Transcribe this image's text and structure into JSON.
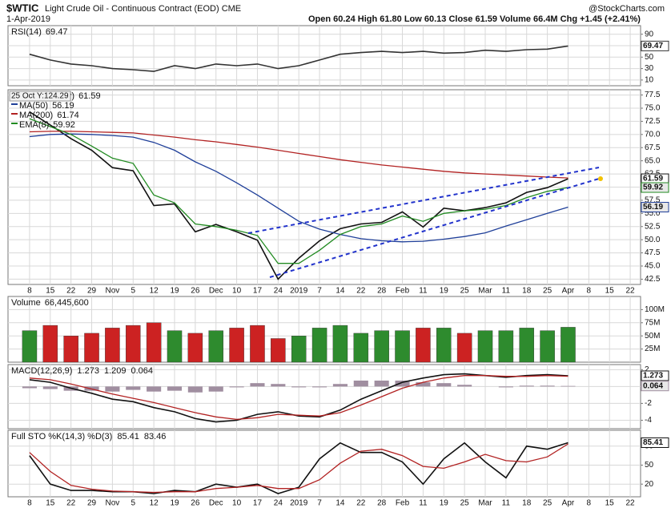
{
  "header": {
    "symbol": "$WTIC",
    "name": "Light Crude Oil - Continuous Contract (EOD) CME",
    "date": "1-Apr-2019",
    "quote": "Open 60.24  High 61.80  Low 60.13  Close 61.59  Volume 66.4M  Chg +1.45 (+2.41%)",
    "brand": "@StockCharts.com",
    "tooltip": "25 Oct Y:124.29"
  },
  "chart_data": [
    {
      "type": "line",
      "ylim": [
        0,
        105
      ],
      "yticks": [
        10,
        30,
        50,
        70,
        90
      ],
      "grid": true,
      "series": [
        {
          "name": "RSI(14)",
          "color": "#333333",
          "axis_tag": true,
          "values": [
            55,
            45,
            38,
            35,
            30,
            28,
            25,
            35,
            30,
            38,
            35,
            38,
            30,
            35,
            45,
            55,
            58,
            60,
            58,
            60,
            57,
            58,
            62,
            60,
            63,
            64,
            69.47,
            null,
            null,
            null
          ]
        }
      ]
    },
    {
      "type": "line",
      "ylim": [
        41.5,
        78.5
      ],
      "grid": true,
      "yticks": [
        42.5,
        {
          "value": 45,
          "label": "45.0"
        },
        47.5,
        {
          "value": 50,
          "label": "50.0"
        },
        52.5,
        {
          "value": 55,
          "label": "55.0"
        },
        57.5,
        {
          "value": 60,
          "label": "60.0"
        },
        62.5,
        {
          "value": 65,
          "label": "65.0"
        },
        67.5,
        {
          "value": 70,
          "label": "70.0"
        },
        72.5,
        {
          "value": 75,
          "label": "75.0"
        },
        77.5
      ],
      "x": [
        "8",
        "15",
        "22",
        "29",
        "Nov",
        "5",
        "12",
        "19",
        "26",
        "Dec",
        "10",
        "17",
        "24",
        "2019",
        "7",
        "14",
        "22",
        "28",
        "Feb",
        "11",
        "19",
        "25",
        "Mar",
        "11",
        "18",
        "25",
        "Apr",
        "8",
        "15",
        "22"
      ],
      "series": [
        {
          "name": "$WTIC (Daily)",
          "color": "#111111",
          "axis_tag": true,
          "values": [
            74.3,
            71.8,
            69.2,
            67.0,
            63.7,
            63.1,
            56.5,
            56.8,
            51.5,
            52.9,
            51.5,
            49.9,
            42.5,
            46.5,
            49.8,
            52.1,
            53.0,
            53.3,
            55.3,
            52.4,
            56.0,
            55.5,
            56.1,
            57.0,
            59.0,
            59.9,
            61.59,
            null,
            null,
            null
          ]
        },
        {
          "name": "MA(50)",
          "color": "#1f3f99",
          "axis_tag": true,
          "values": [
            69.6,
            70.0,
            70.1,
            70.0,
            69.8,
            69.5,
            68.5,
            67.0,
            64.8,
            63.0,
            60.8,
            58.5,
            56.0,
            53.5,
            52.0,
            51.0,
            50.2,
            49.8,
            49.6,
            49.7,
            50.1,
            50.6,
            51.3,
            52.6,
            53.8,
            55.0,
            56.19,
            null,
            null,
            null
          ]
        },
        {
          "name": "MA(200)",
          "color": "#b22222",
          "values": [
            70.5,
            70.6,
            70.6,
            70.5,
            70.4,
            70.3,
            69.9,
            69.5,
            69.0,
            68.6,
            68.1,
            67.6,
            67.0,
            66.4,
            65.8,
            65.2,
            64.7,
            64.2,
            63.8,
            63.4,
            63.0,
            62.7,
            62.5,
            62.3,
            62.1,
            61.9,
            61.74,
            null,
            null,
            null
          ]
        },
        {
          "name": "EMA(8)",
          "color": "#228b22",
          "axis_tag": true,
          "values": [
            73.0,
            71.5,
            70.0,
            67.8,
            65.5,
            64.5,
            58.5,
            57.0,
            53.0,
            52.5,
            51.8,
            50.8,
            45.5,
            45.5,
            48.0,
            51.0,
            52.5,
            53.0,
            54.5,
            53.5,
            55.0,
            55.5,
            55.8,
            56.5,
            58.0,
            59.2,
            59.92,
            null,
            null,
            null
          ]
        }
      ]
    },
    {
      "type": "bar",
      "ylim": [
        0,
        125000000
      ],
      "grid": true,
      "yticks": [
        {
          "value": 25000000,
          "label": "25M"
        },
        {
          "value": 50000000,
          "label": "50M"
        },
        {
          "value": 75000000,
          "label": "75M"
        },
        {
          "value": 100000000,
          "label": "100M"
        }
      ],
      "up_color": "#2e8b2e",
      "down_color": "#cc2222",
      "last_value_label": "66,445,600",
      "series": [
        {
          "name": "Volume",
          "values": [
            60000000,
            70000000,
            50000000,
            55000000,
            65000000,
            70000000,
            75000000,
            60000000,
            55000000,
            60000000,
            65000000,
            70000000,
            45000000,
            50000000,
            65000000,
            70000000,
            55000000,
            60000000,
            60000000,
            65000000,
            65000000,
            55000000,
            60000000,
            60000000,
            65000000,
            60000000,
            66445600,
            null,
            null,
            null
          ]
        }
      ]
    },
    {
      "type": "line",
      "title": "MACD(12,26,9)",
      "ylim": [
        -5,
        2.6
      ],
      "yticks": [
        -4,
        -2,
        0,
        2
      ],
      "grid": true,
      "series": [
        {
          "color": "#111111",
          "style": "line",
          "axis_tag": true,
          "values": [
            0.8,
            0.5,
            -0.2,
            -0.8,
            -1.5,
            -1.8,
            -2.5,
            -3.0,
            -3.8,
            -4.2,
            -4.0,
            -3.3,
            -3.0,
            -3.5,
            -3.6,
            -2.8,
            -1.5,
            -0.5,
            0.5,
            1.0,
            1.4,
            1.5,
            1.3,
            1.1,
            1.3,
            1.4,
            1.273,
            null,
            null,
            null
          ]
        },
        {
          "color": "#b22222",
          "style": "line",
          "values": [
            1.0,
            0.8,
            0.3,
            -0.3,
            -0.9,
            -1.4,
            -1.9,
            -2.5,
            -3.1,
            -3.6,
            -3.9,
            -3.7,
            -3.3,
            -3.4,
            -3.5,
            -3.1,
            -2.2,
            -1.2,
            -0.2,
            0.5,
            1.0,
            1.3,
            1.3,
            1.2,
            1.2,
            1.3,
            1.209,
            null,
            null,
            null
          ]
        },
        {
          "color": "#a08ea0",
          "style": "bar",
          "axis_tag": true,
          "values": [
            -0.2,
            -0.3,
            -0.5,
            -0.5,
            -0.6,
            -0.4,
            -0.6,
            -0.5,
            -0.7,
            -0.6,
            -0.1,
            0.4,
            0.3,
            -0.1,
            -0.1,
            0.3,
            0.7,
            0.7,
            0.7,
            0.5,
            0.4,
            0.2,
            0,
            -0.1,
            0.1,
            0.1,
            0.064,
            null,
            null,
            null
          ]
        }
      ]
    },
    {
      "type": "line",
      "title": "Full STO %K(14,3) %D(3)",
      "ylim": [
        0,
        105
      ],
      "yticks": [
        20,
        50,
        80
      ],
      "grid": true,
      "x": [
        "8",
        "15",
        "22",
        "29",
        "Nov",
        "5",
        "12",
        "19",
        "26",
        "Dec",
        "10",
        "17",
        "24",
        "2019",
        "7",
        "14",
        "22",
        "28",
        "Feb",
        "11",
        "19",
        "25",
        "Mar",
        "11",
        "18",
        "25",
        "Apr",
        "8",
        "15",
        "22"
      ],
      "series": [
        {
          "color": "#111111",
          "style": "line",
          "axis_tag": true,
          "values": [
            65,
            20,
            10,
            10,
            8,
            8,
            5,
            10,
            8,
            20,
            15,
            20,
            5,
            15,
            60,
            85,
            70,
            70,
            55,
            20,
            60,
            85,
            55,
            30,
            80,
            75,
            85.41,
            null,
            null,
            null
          ]
        },
        {
          "color": "#b22222",
          "style": "line",
          "values": [
            70,
            40,
            18,
            12,
            9,
            8,
            7,
            8,
            8,
            13,
            15,
            18,
            13,
            13,
            27,
            53,
            72,
            75,
            65,
            48,
            45,
            55,
            67,
            57,
            55,
            63,
            83.46,
            null,
            null,
            null
          ]
        }
      ]
    }
  ]
}
